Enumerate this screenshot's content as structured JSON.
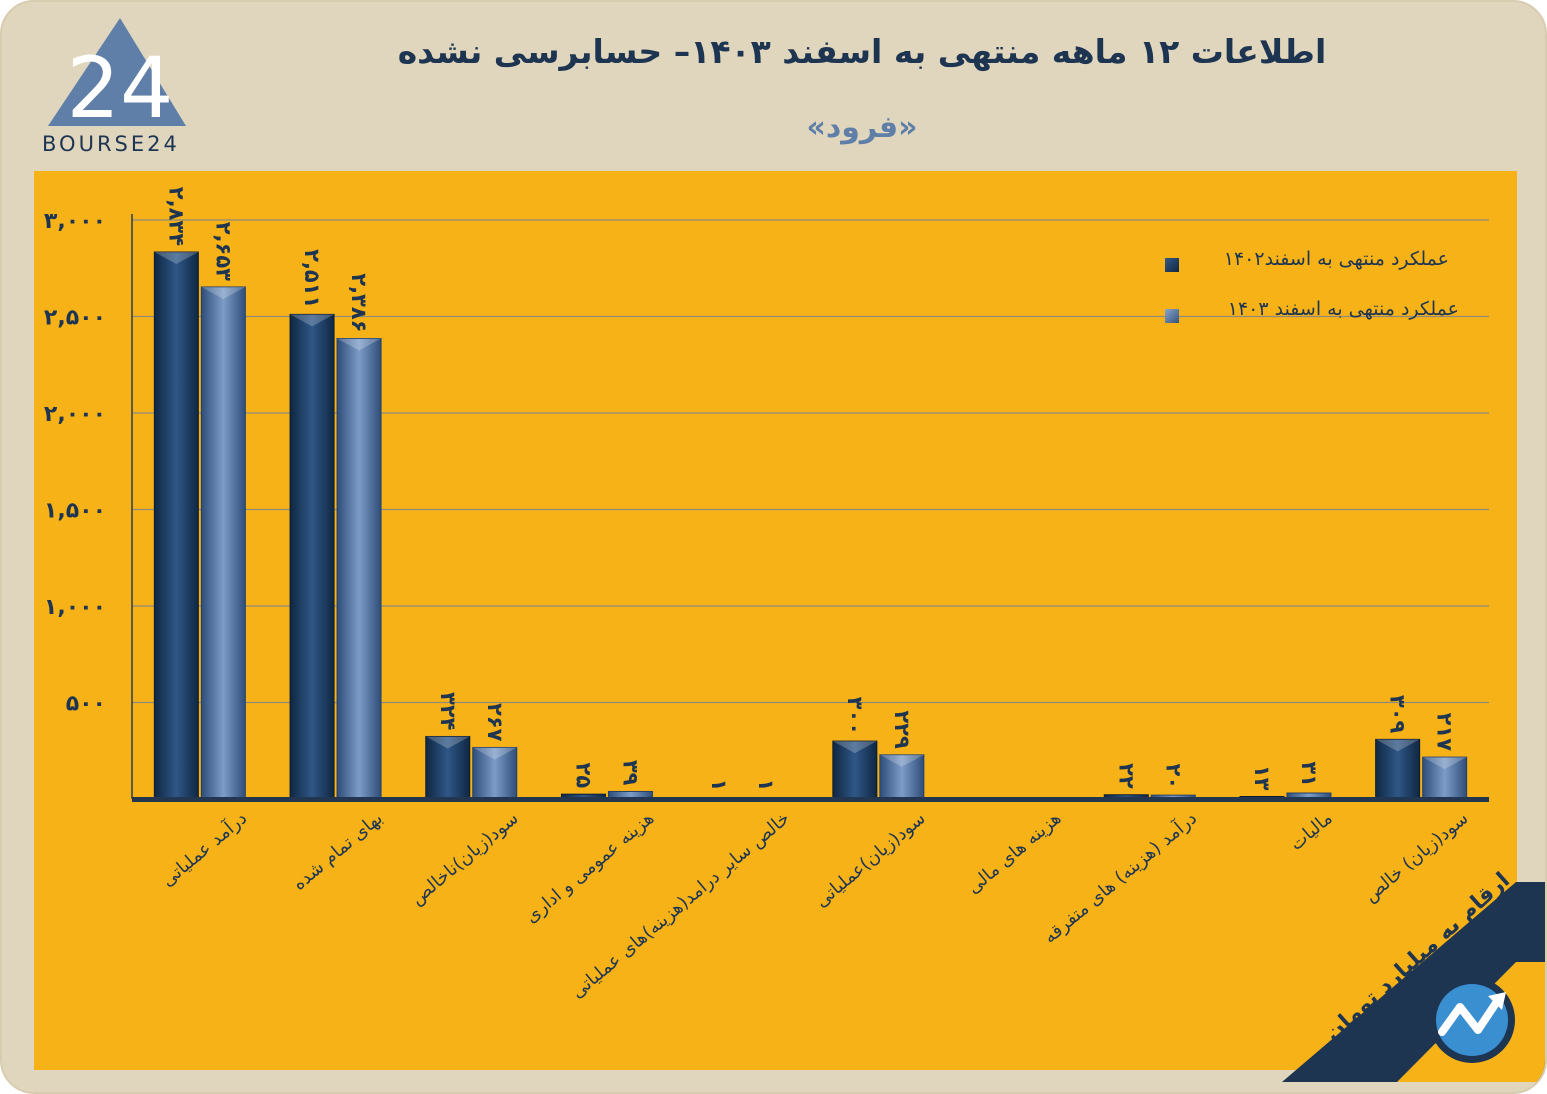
{
  "header": {
    "title": "اطلاعات ۱۲ ماهه منتهی به اسفند  ۱۴۰۳– حسابرسی نشده",
    "subtitle": "«فرود»",
    "logo_text": "BOURSE24",
    "logo_numeral": "24"
  },
  "note": "ارقام به میلیارد تومان",
  "colors": {
    "background": "#e0d6bd",
    "plot": "#f7b217",
    "series_1402": "#1c3d63",
    "series_1403": "#5377a6",
    "grid": "#8f8a7c",
    "text": "#1e3552"
  },
  "chart_data": {
    "type": "bar",
    "title": "اطلاعات ۱۲ ماهه منتهی به اسفند  ۱۴۰۳– حسابرسی نشده",
    "unit": "ارقام به میلیارد تومان",
    "ylim": [
      0,
      3000
    ],
    "yticks": [
      500,
      1000,
      1500,
      2000,
      2500,
      3000
    ],
    "ytick_labels": [
      "۵۰۰",
      "۱,۰۰۰",
      "۱,۵۰۰",
      "۲,۰۰۰",
      "۲,۵۰۰",
      "۳,۰۰۰"
    ],
    "grid": true,
    "legend_position": "top-right",
    "categories": [
      "درآمد عملیاتی",
      "بهای تمام شده",
      "سود(زیان)ناخالص",
      "هزینه عمومی و اداری",
      "خالص سایر درامد(هزینه)های عملیاتی",
      "سود(زیان)عملیاتی",
      "هزینه های مالی",
      "درآمد (هزینه) های متفرقه",
      "مالیات",
      "سود(زیان) خالص"
    ],
    "series": [
      {
        "name": "عملکرد منتهی به اسفند۱۴۰۲",
        "values": [
          2834,
          2511,
          324,
          25,
          1,
          300,
          0,
          22,
          13,
          309
        ],
        "labels": [
          "۲,۸۳۴",
          "۲,۵۱۱",
          "۳۲۴",
          "۲۵",
          "۱",
          "۳۰۰",
          "",
          "۲۲",
          "۱۳",
          "۳۰۹"
        ]
      },
      {
        "name": "عملکرد منتهی به اسفند ۱۴۰۳",
        "values": [
          2653,
          2386,
          267,
          39,
          1,
          229,
          0,
          20,
          31,
          217
        ],
        "labels": [
          "۲,۶۵۳",
          "۲,۳۸۶",
          "۲۶۷",
          "۳۹",
          "۱",
          "۲۲۹",
          "",
          "۲۰",
          "۳۱",
          "۲۱۷"
        ]
      }
    ]
  }
}
